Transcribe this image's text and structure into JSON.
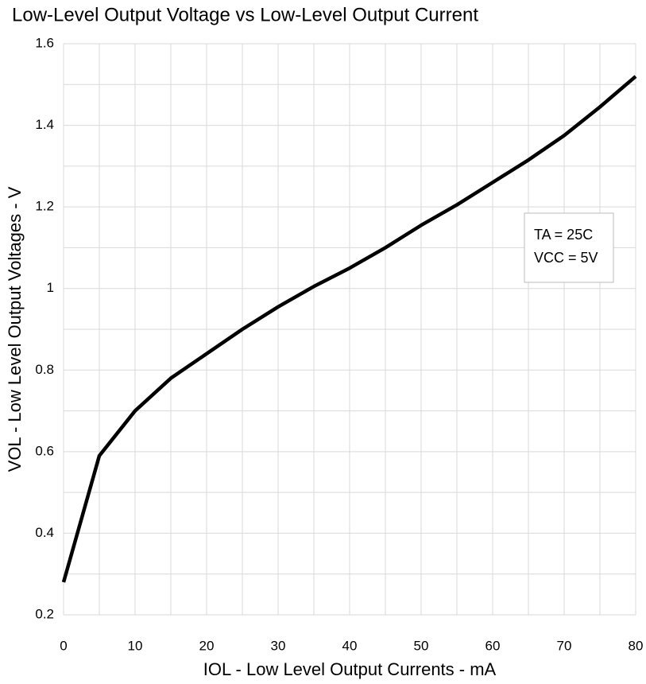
{
  "chart_data": {
    "type": "line",
    "title": "Low-Level Output Voltage vs Low-Level Output Current",
    "x_label": "IOL - Low Level Output Currents - mA",
    "y_label": "VOL - Low Level Output Voltages - V",
    "annotations": [
      "TA = 25C",
      "VCC = 5V"
    ],
    "x": [
      0,
      5,
      10,
      15,
      20,
      25,
      30,
      35,
      40,
      45,
      50,
      55,
      60,
      65,
      70,
      75,
      80
    ],
    "series": [
      {
        "color": "#000000",
        "values": [
          0.28,
          0.59,
          0.7,
          0.78,
          0.84,
          0.9,
          0.955,
          1.005,
          1.05,
          1.1,
          1.155,
          1.205,
          1.26,
          1.315,
          1.375,
          1.445,
          1.52
        ]
      }
    ],
    "xlim": [
      0,
      80
    ],
    "xticks": [
      0,
      10,
      20,
      30,
      40,
      50,
      60,
      70,
      80
    ],
    "ylim": [
      0.2,
      1.6
    ],
    "yticks": [
      0.2,
      0.4,
      0.6,
      0.8,
      1,
      1.2,
      1.4,
      1.6
    ],
    "x_minor_grid": [
      5,
      15,
      25,
      35,
      45,
      55,
      65,
      75
    ],
    "y_minor_grid": [
      0.3,
      0.5,
      0.7,
      0.9,
      1.1,
      1.3,
      1.5
    ],
    "grid": true
  }
}
